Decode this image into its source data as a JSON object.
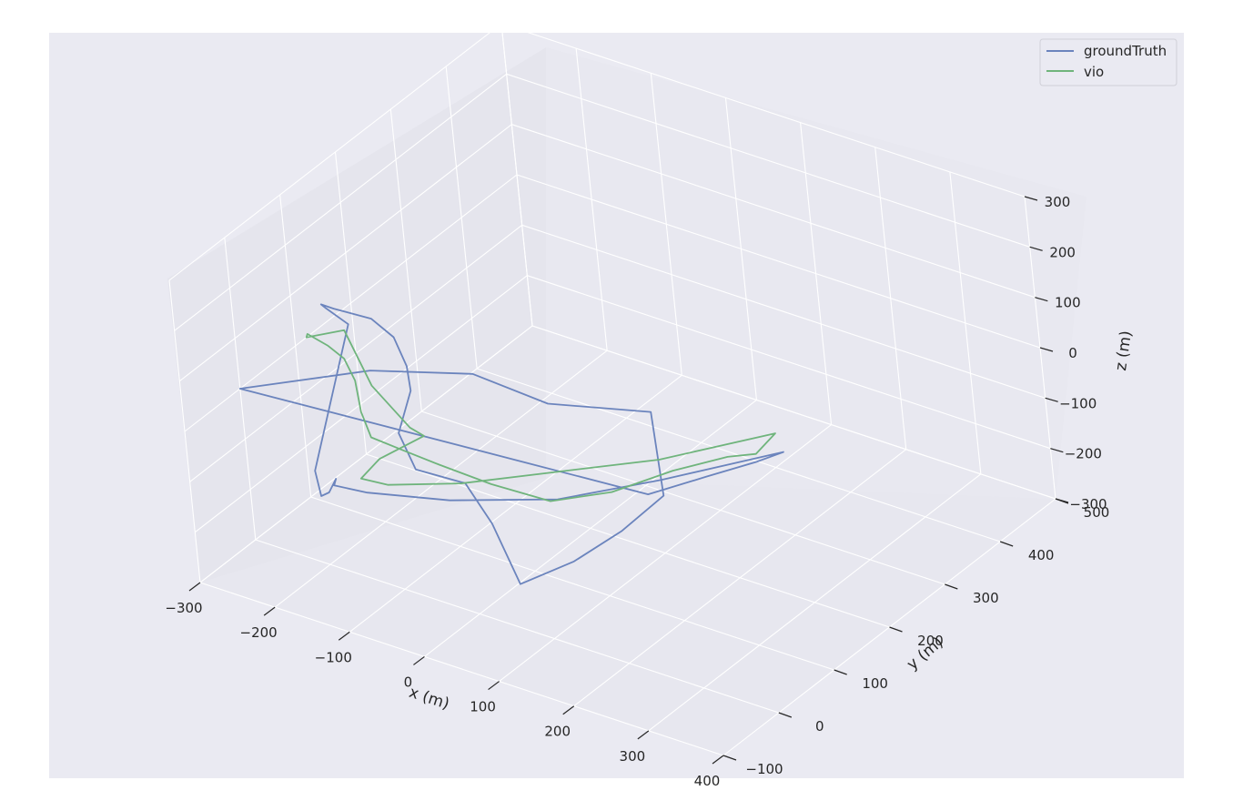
{
  "chart_data": {
    "type": "line3d",
    "colors": {
      "background": "#eaeaf2",
      "pane": "#e6e6ee",
      "grid": "#ffffff",
      "groundTruth": "#6b84bd",
      "vio": "#6fb47c",
      "text": "#262626"
    },
    "legend": {
      "placement": "top-right",
      "entries": [
        "groundTruth",
        "vio"
      ]
    },
    "axes": {
      "x": {
        "label": "x (m)",
        "range": [
          -300,
          400
        ],
        "ticks": [
          "−300",
          "−200",
          "−100",
          "0",
          "100",
          "200",
          "300",
          "400"
        ]
      },
      "y": {
        "label": "y (m)",
        "range": [
          -100,
          500
        ],
        "ticks": [
          "−100",
          "0",
          "100",
          "200",
          "300",
          "400",
          "500"
        ]
      },
      "z": {
        "label": "z (m)",
        "range": [
          -300,
          300
        ],
        "ticks": [
          "−300",
          "−200",
          "−100",
          "0",
          "100",
          "200",
          "300"
        ]
      }
    },
    "grid": true,
    "series": [
      {
        "name": "groundTruth",
        "color": "#6b84bd",
        "points": [
          [
            -300,
            0,
            0
          ],
          [
            -200,
            100,
            0
          ],
          [
            -100,
            150,
            0
          ],
          [
            0,
            150,
            -10
          ],
          [
            100,
            200,
            -20
          ],
          [
            230,
            50,
            5
          ],
          [
            250,
            -50,
            30
          ],
          [
            262,
            -150,
            60
          ],
          [
            259,
            -240,
            90
          ],
          [
            245,
            -260,
            220
          ],
          [
            230,
            -280,
            310
          ],
          [
            180,
            -300,
            330
          ],
          [
            120,
            -250,
            330
          ],
          [
            60,
            -150,
            300
          ],
          [
            0,
            -80,
            260
          ],
          [
            -80,
            0,
            210
          ],
          [
            -150,
            50,
            170
          ],
          [
            -200,
            80,
            130
          ],
          [
            -250,
            110,
            90
          ],
          [
            -300,
            150,
            40
          ],
          [
            -310,
            170,
            10
          ],
          [
            -290,
            180,
            -20
          ],
          [
            -150,
            -70,
            -30
          ],
          [
            -120,
            -100,
            -40
          ],
          [
            -150,
            -50,
            -90
          ],
          [
            -180,
            0,
            -120
          ],
          [
            -200,
            20,
            -160
          ],
          [
            -180,
            50,
            -190
          ],
          [
            -100,
            90,
            -200
          ],
          [
            0,
            150,
            -200
          ],
          [
            80,
            230,
            -190
          ],
          [
            180,
            300,
            -150
          ],
          [
            220,
            270,
            -100
          ],
          [
            240,
            200,
            -50
          ],
          [
            250,
            100,
            10
          ],
          [
            250,
            0,
            60
          ]
        ]
      },
      {
        "name": "vio",
        "color": "#6fb47c",
        "points": [
          [
            -280,
            160,
            -10
          ],
          [
            -200,
            100,
            -30
          ],
          [
            -120,
            60,
            -40
          ],
          [
            -110,
            70,
            -60
          ],
          [
            -150,
            40,
            -100
          ],
          [
            -170,
            30,
            -140
          ],
          [
            -150,
            50,
            -160
          ],
          [
            -90,
            100,
            -170
          ],
          [
            0,
            170,
            -160
          ],
          [
            80,
            230,
            -150
          ],
          [
            170,
            320,
            -130
          ],
          [
            190,
            260,
            -110
          ],
          [
            200,
            200,
            -60
          ],
          [
            205,
            100,
            0
          ],
          [
            200,
            0,
            40
          ],
          [
            180,
            -80,
            80
          ],
          [
            150,
            -140,
            150
          ],
          [
            130,
            -200,
            230
          ],
          [
            100,
            -220,
            260
          ],
          [
            40,
            -200,
            240
          ],
          [
            -20,
            -140,
            210
          ],
          [
            -90,
            -60,
            170
          ],
          [
            -160,
            10,
            120
          ],
          [
            -230,
            70,
            60
          ],
          [
            -290,
            110,
            20
          ],
          [
            -300,
            120,
            0
          ]
        ]
      }
    ]
  }
}
